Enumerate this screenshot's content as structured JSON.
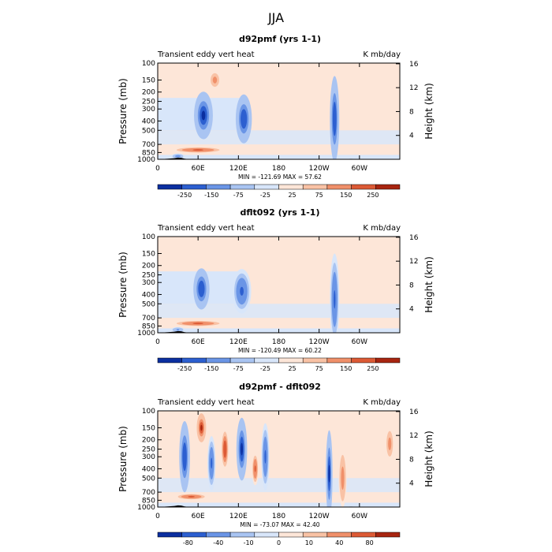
{
  "title": "JJA",
  "chart_data": [
    {
      "type": "heatmap",
      "title": "d92pmf (yrs 1-1)",
      "left_label": "Transient eddy vert heat",
      "units": "K mb/day",
      "ylabel": "Pressure (mb)",
      "ylabel_right": "Height (km)",
      "pressure_ticks": [
        "100",
        "150",
        "200",
        "250",
        "300",
        "400",
        "500",
        "700",
        "850",
        "1000"
      ],
      "pressure_values": [
        100,
        150,
        200,
        250,
        300,
        400,
        500,
        700,
        850,
        1000
      ],
      "height_ticks": [
        "4",
        "8",
        "12",
        "16"
      ],
      "height_values": [
        4,
        8,
        12,
        16
      ],
      "x_ticks": [
        "0",
        "60E",
        "120E",
        "180",
        "120W",
        "60W"
      ],
      "x_values": [
        0,
        60,
        120,
        180,
        240,
        300
      ],
      "xlim": [
        0,
        360
      ],
      "ylim": [
        1000,
        100
      ],
      "stats": "MIN = -121.69   MAX =  57.62",
      "colorbar_labels": [
        "-250",
        "-150",
        "-75",
        "-25",
        "25",
        "75",
        "150",
        "250"
      ],
      "cores": [
        {
          "lon": 68,
          "p": 350,
          "value": -110,
          "lw": 14,
          "hw": 180
        },
        {
          "lon": 128,
          "p": 380,
          "value": -105,
          "lw": 12,
          "hw": 200
        },
        {
          "lon": 263,
          "p": 380,
          "value": -100,
          "lw": 7,
          "hw": 400
        },
        {
          "lon": 30,
          "p": 930,
          "value": -60,
          "lw": 10,
          "hw": 60
        },
        {
          "lon": 85,
          "p": 150,
          "value": 30,
          "lw": 8,
          "hw": 30
        },
        {
          "lon": 60,
          "p": 800,
          "value": 40,
          "lw": 40,
          "hw": 60
        }
      ]
    },
    {
      "type": "heatmap",
      "title": "dflt092 (yrs 1-1)",
      "left_label": "Transient eddy vert heat",
      "units": "K mb/day",
      "ylabel": "Pressure (mb)",
      "ylabel_right": "Height (km)",
      "pressure_ticks": [
        "100",
        "150",
        "200",
        "250",
        "300",
        "400",
        "500",
        "700",
        "850",
        "1000"
      ],
      "pressure_values": [
        100,
        150,
        200,
        250,
        300,
        400,
        500,
        700,
        850,
        1000
      ],
      "height_ticks": [
        "4",
        "8",
        "12",
        "16"
      ],
      "height_values": [
        4,
        8,
        12,
        16
      ],
      "x_ticks": [
        "0",
        "60E",
        "120E",
        "180",
        "120W",
        "60W"
      ],
      "x_values": [
        0,
        60,
        120,
        180,
        240,
        300
      ],
      "xlim": [
        0,
        360
      ],
      "ylim": [
        1000,
        100
      ],
      "stats": "MIN = -120.49   MAX =  60.22",
      "colorbar_labels": [
        "-250",
        "-150",
        "-75",
        "-25",
        "25",
        "75",
        "150",
        "250"
      ],
      "cores": [
        {
          "lon": 65,
          "p": 350,
          "value": -105,
          "lw": 12,
          "hw": 160
        },
        {
          "lon": 125,
          "p": 370,
          "value": -90,
          "lw": 14,
          "hw": 180
        },
        {
          "lon": 263,
          "p": 450,
          "value": -95,
          "lw": 7,
          "hw": 450
        },
        {
          "lon": 30,
          "p": 930,
          "value": -55,
          "lw": 10,
          "hw": 60
        },
        {
          "lon": 60,
          "p": 800,
          "value": 45,
          "lw": 40,
          "hw": 60
        }
      ]
    },
    {
      "type": "heatmap",
      "title": "d92pmf - dflt092",
      "left_label": "Transient eddy vert heat",
      "units": "K mb/day",
      "ylabel": "Pressure (mb)",
      "ylabel_right": "Height (km)",
      "pressure_ticks": [
        "100",
        "150",
        "200",
        "250",
        "300",
        "400",
        "500",
        "700",
        "850",
        "1000"
      ],
      "pressure_values": [
        100,
        150,
        200,
        250,
        300,
        400,
        500,
        700,
        850,
        1000
      ],
      "height_ticks": [
        "4",
        "8",
        "12",
        "16"
      ],
      "height_values": [
        4,
        8,
        12,
        16
      ],
      "x_ticks": [
        "0",
        "60E",
        "120E",
        "180",
        "120W",
        "60W"
      ],
      "x_values": [
        0,
        60,
        120,
        180,
        240,
        300
      ],
      "xlim": [
        0,
        360
      ],
      "ylim": [
        1000,
        100
      ],
      "stats": "MIN = -73.07   MAX =  42.40",
      "colorbar_labels": [
        "-80",
        "-40",
        "-10",
        "0",
        "10",
        "40",
        "80"
      ],
      "cores": [
        {
          "lon": 40,
          "p": 300,
          "value": -60,
          "lw": 8,
          "hw": 250
        },
        {
          "lon": 65,
          "p": 150,
          "value": 40,
          "lw": 7,
          "hw": 50
        },
        {
          "lon": 80,
          "p": 350,
          "value": -55,
          "lw": 6,
          "hw": 200
        },
        {
          "lon": 100,
          "p": 250,
          "value": 35,
          "lw": 6,
          "hw": 120
        },
        {
          "lon": 125,
          "p": 250,
          "value": -70,
          "lw": 8,
          "hw": 200
        },
        {
          "lon": 145,
          "p": 400,
          "value": 30,
          "lw": 5,
          "hw": 150
        },
        {
          "lon": 160,
          "p": 300,
          "value": -50,
          "lw": 6,
          "hw": 200
        },
        {
          "lon": 255,
          "p": 450,
          "value": -65,
          "lw": 5,
          "hw": 350
        },
        {
          "lon": 275,
          "p": 500,
          "value": 25,
          "lw": 6,
          "hw": 300
        },
        {
          "lon": 50,
          "p": 780,
          "value": 30,
          "lw": 25,
          "hw": 60
        },
        {
          "lon": 345,
          "p": 220,
          "value": 25,
          "lw": 6,
          "hw": 80
        }
      ]
    }
  ],
  "colors": {
    "neg4": "#0b2fa0",
    "neg3": "#2c5fd0",
    "neg2": "#6a95e6",
    "neg1": "#a9c4f2",
    "neg0": "#d8e6fa",
    "pos0": "#fde6d8",
    "pos1": "#f9c2a5",
    "pos2": "#f0906a",
    "pos3": "#dc5a35",
    "pos4": "#a82510",
    "topo": "#000000"
  }
}
